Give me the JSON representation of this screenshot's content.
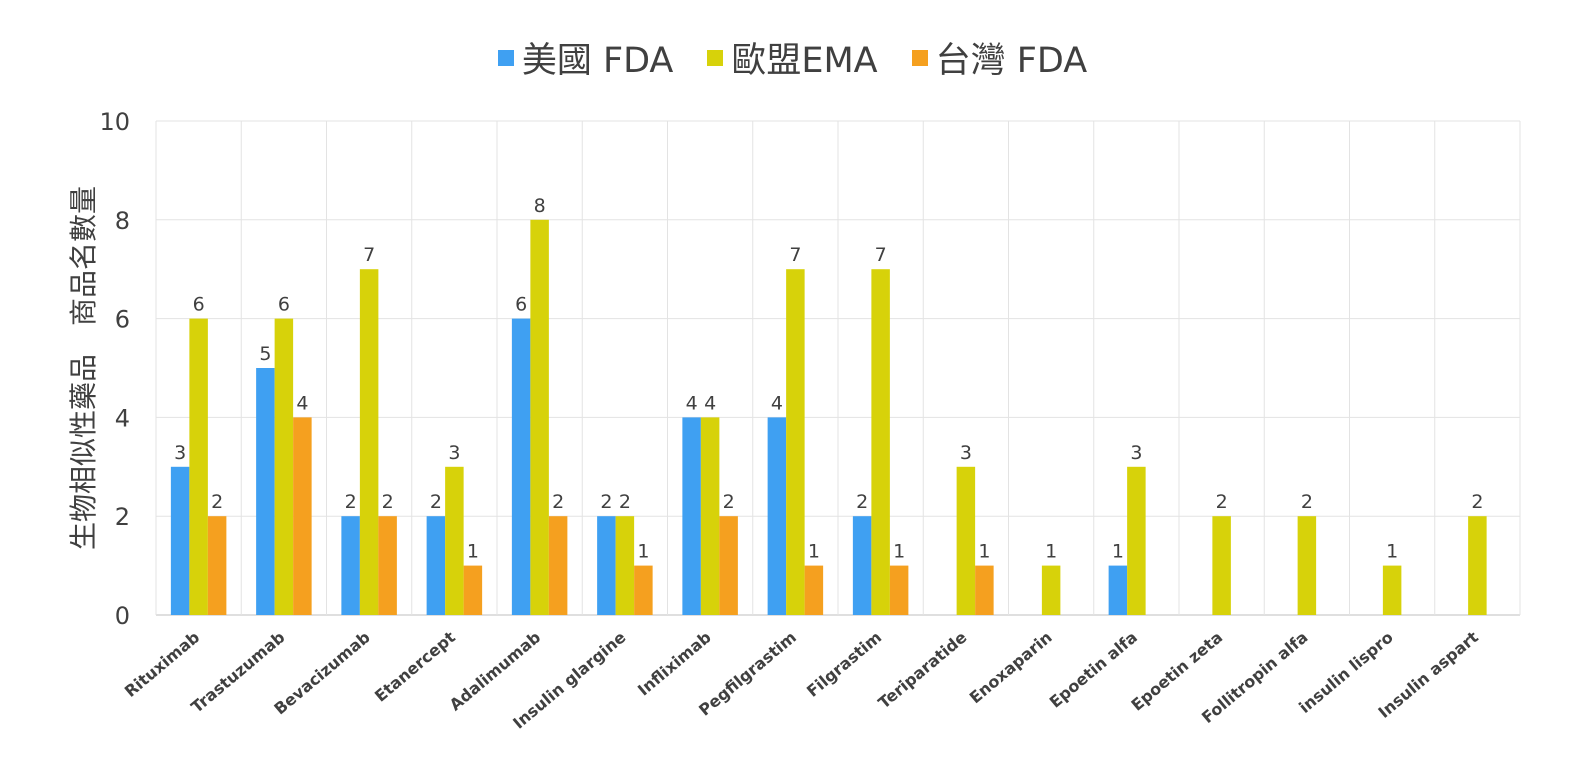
{
  "chart_data": {
    "type": "bar",
    "title": "",
    "xlabel": "",
    "ylabel": "生物相似性藥品　商品名數量",
    "ylim": [
      0,
      10
    ],
    "yticks": [
      0,
      2,
      4,
      6,
      8,
      10
    ],
    "legend_position": "top-center",
    "grid": true,
    "categories": [
      "Rituximab",
      "Trastuzumab",
      "Bevacizumab",
      "Etanercept",
      "Adalimumab",
      "Insulin glargine",
      "Infliximab",
      "Pegfilgrastim",
      "Filgrastim",
      "Teriparatide",
      "Enoxaparin",
      "Epoetin alfa",
      "Epoetin zeta",
      "Follitropin alfa",
      "insulin lispro",
      "Insulin aspart"
    ],
    "series": [
      {
        "name": "美國 FDA",
        "color": "#3fa0f2",
        "values": [
          3,
          5,
          2,
          2,
          6,
          2,
          4,
          4,
          2,
          0,
          0,
          1,
          0,
          0,
          0,
          0
        ]
      },
      {
        "name": "歐盟EMA",
        "color": "#d7d20a",
        "values": [
          6,
          6,
          7,
          3,
          8,
          2,
          4,
          7,
          7,
          3,
          1,
          3,
          2,
          2,
          1,
          2
        ]
      },
      {
        "name": "台灣 FDA",
        "color": "#f5a01f",
        "values": [
          2,
          4,
          2,
          1,
          2,
          1,
          2,
          1,
          1,
          1,
          0,
          0,
          0,
          0,
          0,
          0
        ]
      }
    ]
  }
}
